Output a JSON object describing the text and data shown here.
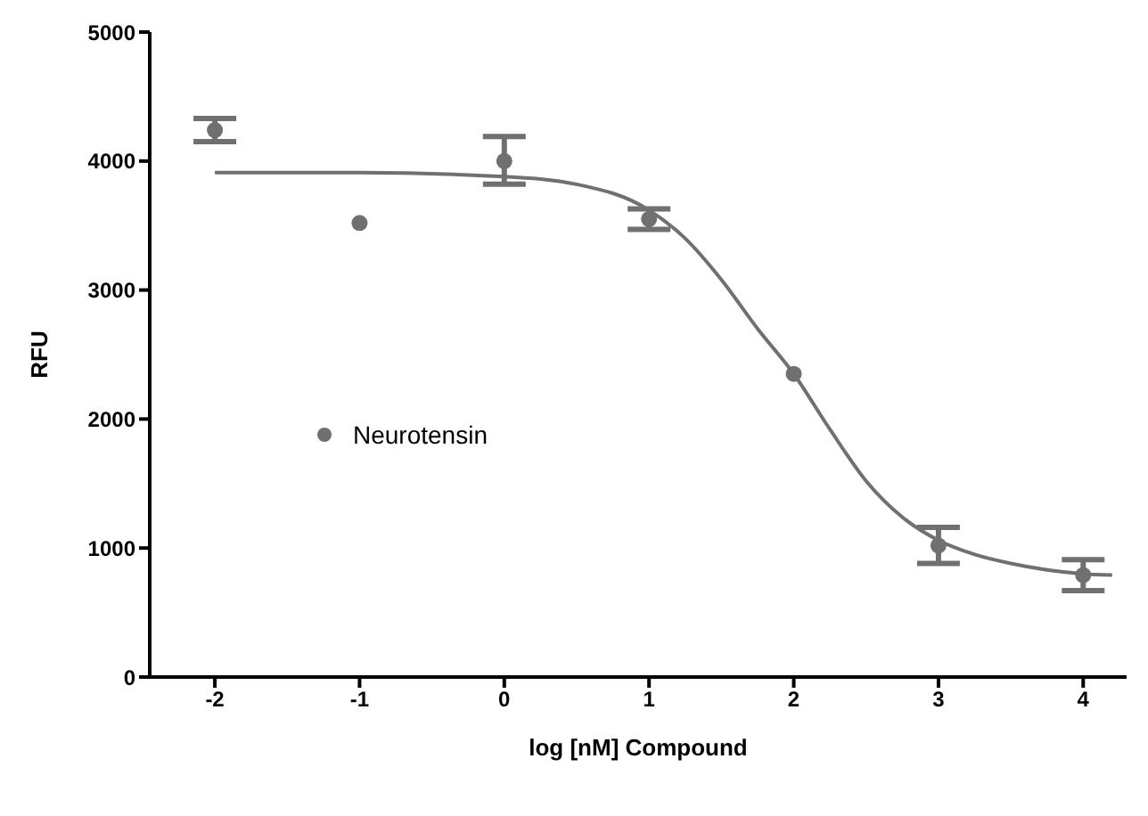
{
  "chart_data": {
    "type": "scatter",
    "xlabel": "log [nM] Compound",
    "ylabel": "RFU",
    "xlim": [
      -2.45,
      4.3
    ],
    "xticks": [
      -2,
      -1,
      0,
      1,
      2,
      3,
      4
    ],
    "ylim": [
      0,
      5000
    ],
    "yticks": [
      0,
      1000,
      2000,
      3000,
      4000,
      5000
    ],
    "grid": false,
    "legend": "left",
    "series": [
      {
        "name": "Neurotensin",
        "marker": "circle",
        "color": "#707070",
        "x": [
          -2,
          -1,
          0,
          1,
          2,
          3,
          4
        ],
        "values": [
          4240,
          3520,
          4000,
          3550,
          2350,
          1020,
          790
        ],
        "errors": [
          [
            4150,
            4330
          ],
          null,
          [
            3820,
            4190
          ],
          [
            3470,
            3630
          ],
          null,
          [
            880,
            1160
          ],
          [
            670,
            910
          ]
        ]
      },
      {
        "type": "line",
        "marker": "none",
        "color": "#707070",
        "x": [
          -2,
          -1,
          0,
          0.5,
          1,
          1.25,
          1.5,
          1.75,
          2,
          2.25,
          2.5,
          2.75,
          3,
          3.25,
          3.5,
          4,
          4.2
        ],
        "values": [
          3910,
          3910,
          3880,
          3820,
          3620,
          3400,
          3080,
          2700,
          2350,
          1920,
          1520,
          1240,
          1060,
          950,
          880,
          800,
          790
        ]
      }
    ]
  }
}
